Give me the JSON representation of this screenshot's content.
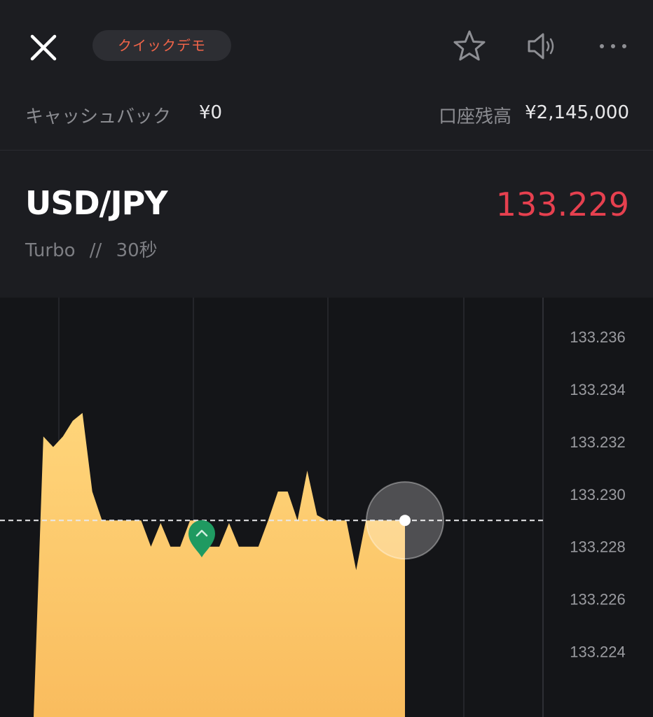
{
  "header": {
    "close_icon": "close-icon",
    "demo_badge": "クイックデモ",
    "star_icon": "star-icon",
    "sound_icon": "speaker-icon",
    "more_icon": "more-icon"
  },
  "account": {
    "cashback_label": "キャッシュバック",
    "cashback_value": "¥0",
    "balance_label": "口座残高",
    "balance_value": "¥2,145,000"
  },
  "instrument": {
    "pair": "USD/JPY",
    "mode": "Turbo",
    "separator": "//",
    "duration": "30秒",
    "price": "133.229",
    "price_color": "#e6404f"
  },
  "chart_data": {
    "type": "area",
    "y_ticks": [
      "133.236",
      "133.234",
      "133.232",
      "133.230",
      "133.228",
      "133.226",
      "133.224"
    ],
    "ylim": [
      133.2215,
      133.2375
    ],
    "values": [
      133.2215,
      133.2322,
      133.2318,
      133.2322,
      133.2328,
      133.2331,
      133.2301,
      133.229,
      133.229,
      133.229,
      133.229,
      133.229,
      133.228,
      133.2289,
      133.228,
      133.228,
      133.229,
      133.229,
      133.228,
      133.228,
      133.2289,
      133.228,
      133.228,
      133.228,
      133.229,
      133.2301,
      133.2301,
      133.229,
      133.2309,
      133.2292,
      133.229,
      133.229,
      133.229,
      133.2271,
      133.229,
      133.229,
      133.229,
      133.229,
      133.229
    ],
    "current_price": 133.229,
    "entry_marker_value": 133.2285,
    "fill_color": "#fdc56a",
    "grid": true
  }
}
